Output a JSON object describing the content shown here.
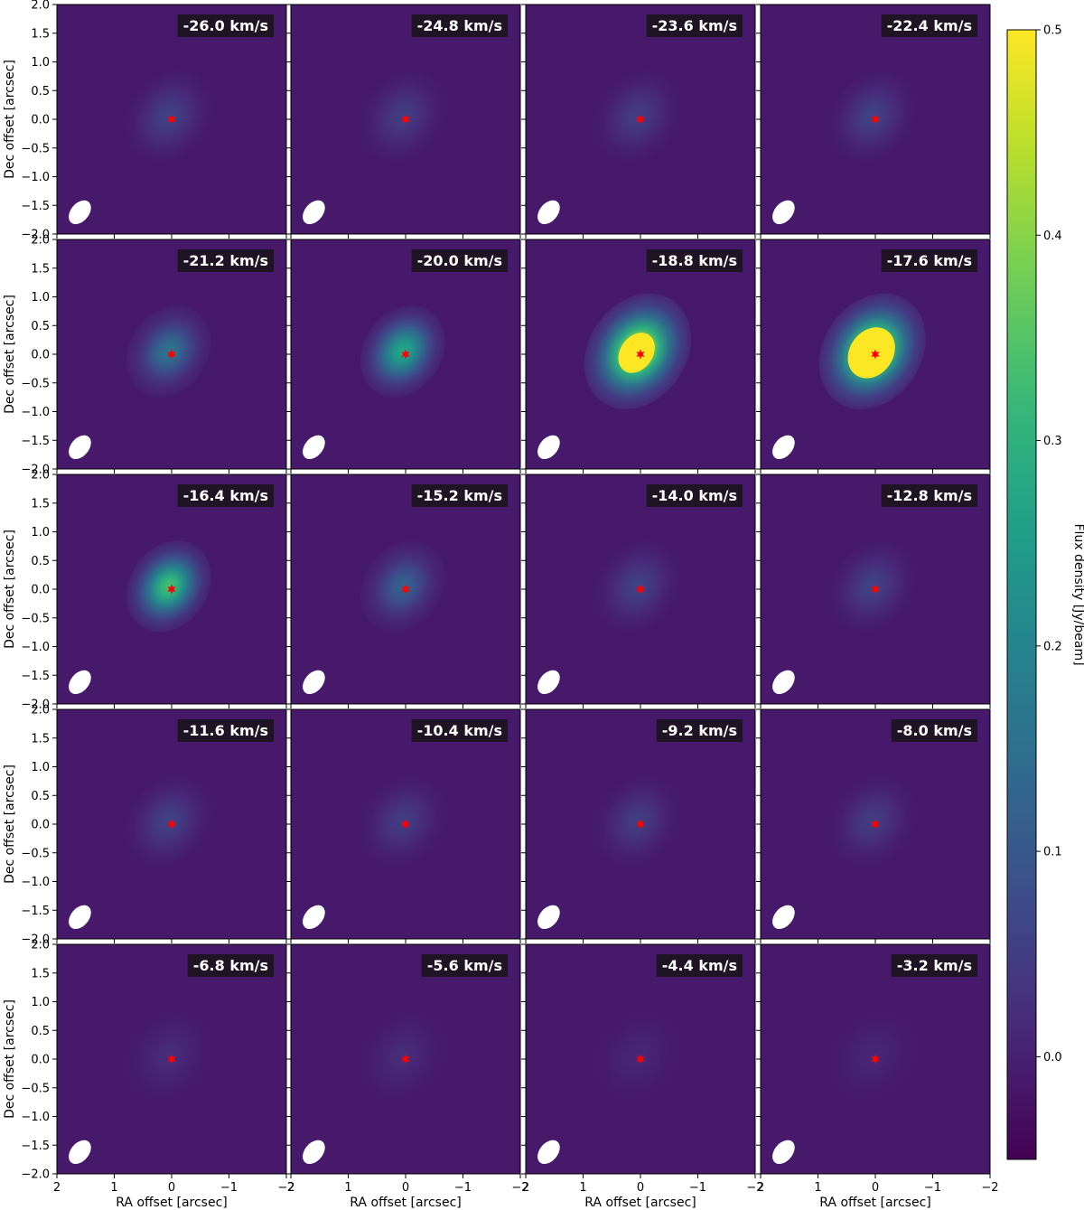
{
  "chart_data": {
    "type": "heatmap",
    "layout": "5x4 channel map grid",
    "xlabel": "RA offset [arcsec]",
    "ylabel": "Dec offset [arcsec]",
    "xlim": [
      2,
      -2
    ],
    "ylim": [
      -2,
      2
    ],
    "xticks": [
      2,
      1,
      0,
      -1,
      -2
    ],
    "yticks": [
      2.0,
      1.5,
      1.0,
      0.5,
      0.0,
      -0.5,
      -1.0,
      -1.5,
      -2.0
    ],
    "xtick_labels": [
      "2",
      "1",
      "0",
      "−1",
      "−2"
    ],
    "ytick_labels": [
      "2.0",
      "1.5",
      "1.0",
      "0.5",
      "0.0",
      "−0.5",
      "−1.0",
      "−1.5",
      "−2.0"
    ],
    "colorbar": {
      "label": "Flux density [Jy/beam]",
      "range": [
        -0.05,
        0.5
      ],
      "ticks": [
        0.0,
        0.1,
        0.2,
        0.3,
        0.4,
        0.5
      ],
      "tick_labels": [
        "0.0",
        "0.1",
        "0.2",
        "0.3",
        "0.4",
        "0.5"
      ],
      "colormap": "viridis"
    },
    "marker": {
      "name": "star",
      "x": 0,
      "y": 0,
      "color": "#ff0000"
    },
    "beam": {
      "color": "#ffffff"
    },
    "panels": [
      {
        "label": "-26.0 km/s",
        "peak": 0.06
      },
      {
        "label": "-24.8 km/s",
        "peak": 0.05
      },
      {
        "label": "-23.6 km/s",
        "peak": 0.05
      },
      {
        "label": "-22.4 km/s",
        "peak": 0.06
      },
      {
        "label": "-21.2 km/s",
        "peak": 0.16
      },
      {
        "label": "-20.0 km/s",
        "peak": 0.28
      },
      {
        "label": "-18.8 km/s",
        "peak": 0.5
      },
      {
        "label": "-17.6 km/s",
        "peak": 0.5
      },
      {
        "label": "-16.4 km/s",
        "peak": 0.34
      },
      {
        "label": "-15.2 km/s",
        "peak": 0.12
      },
      {
        "label": "-14.0 km/s",
        "peak": 0.06
      },
      {
        "label": "-12.8 km/s",
        "peak": 0.06
      },
      {
        "label": "-11.6 km/s",
        "peak": 0.06
      },
      {
        "label": "-10.4 km/s",
        "peak": 0.05
      },
      {
        "label": "-9.2 km/s",
        "peak": 0.05
      },
      {
        "label": "-8.0 km/s",
        "peak": 0.05
      },
      {
        "label": "-6.8 km/s",
        "peak": 0.02
      },
      {
        "label": "-5.6 km/s",
        "peak": 0.02
      },
      {
        "label": "-4.4 km/s",
        "peak": 0.01
      },
      {
        "label": "-3.2 km/s",
        "peak": 0.01
      }
    ]
  }
}
